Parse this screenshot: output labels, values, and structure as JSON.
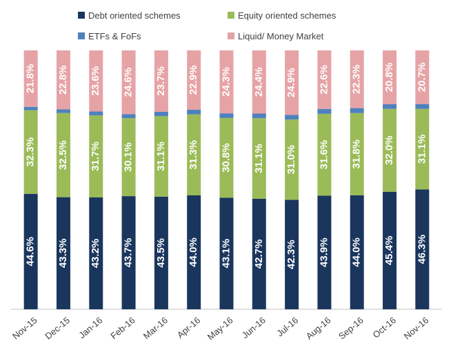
{
  "chart_data": {
    "type": "stacked_bar",
    "categories": [
      "Nov-15",
      "Dec-15",
      "Jan-16",
      "Feb-16",
      "Mar-16",
      "Apr-16",
      "May-16",
      "Jun-16",
      "Jul-16",
      "Aug-16",
      "Sep-16",
      "Oct-16",
      "Nov-16"
    ],
    "series": [
      {
        "name": "Debt oriented schemes",
        "color": "#1b365d",
        "values": [
          44.6,
          43.3,
          43.2,
          43.7,
          43.5,
          44.0,
          43.1,
          42.7,
          42.3,
          43.9,
          44.0,
          45.4,
          46.3
        ],
        "value_labels": [
          "44.6%",
          "43.3%",
          "43.2%",
          "43.7%",
          "43.5%",
          "44.0%",
          "43.1%",
          "42.7%",
          "42.3%",
          "43.9%",
          "44.0%",
          "45.4%",
          "46.3%"
        ]
      },
      {
        "name": "Equity oriented schemes",
        "color": "#9bbb59",
        "values": [
          32.3,
          32.5,
          31.7,
          30.1,
          31.1,
          31.3,
          30.8,
          31.1,
          31.0,
          31.6,
          31.8,
          32.0,
          31.1
        ],
        "value_labels": [
          "32.3%",
          "32.5%",
          "31.7%",
          "30.1%",
          "31.1%",
          "31.3%",
          "30.8%",
          "31.1%",
          "31.0%",
          "31.6%",
          "31.8%",
          "32.0%",
          "31.1%"
        ]
      },
      {
        "name": "ETFs & FoFs",
        "color": "#4f81bd",
        "values": [
          1.3,
          1.4,
          1.5,
          1.6,
          1.7,
          1.8,
          1.8,
          1.8,
          1.8,
          1.9,
          1.9,
          1.8,
          1.9
        ]
      },
      {
        "name": "Liquid/ Money Market",
        "color": "#e6a3a6",
        "values": [
          21.8,
          22.8,
          23.6,
          24.6,
          23.7,
          22.9,
          24.3,
          24.4,
          24.9,
          22.6,
          22.3,
          20.8,
          20.7
        ],
        "value_labels": [
          "21.8%",
          "22.8%",
          "23.6%",
          "24.6%",
          "23.7%",
          "22.9%",
          "24.3%",
          "24.4%",
          "24.9%",
          "22.6%",
          "22.3%",
          "20.8%",
          "20.7%"
        ]
      }
    ],
    "ylim": [
      0,
      100
    ]
  }
}
